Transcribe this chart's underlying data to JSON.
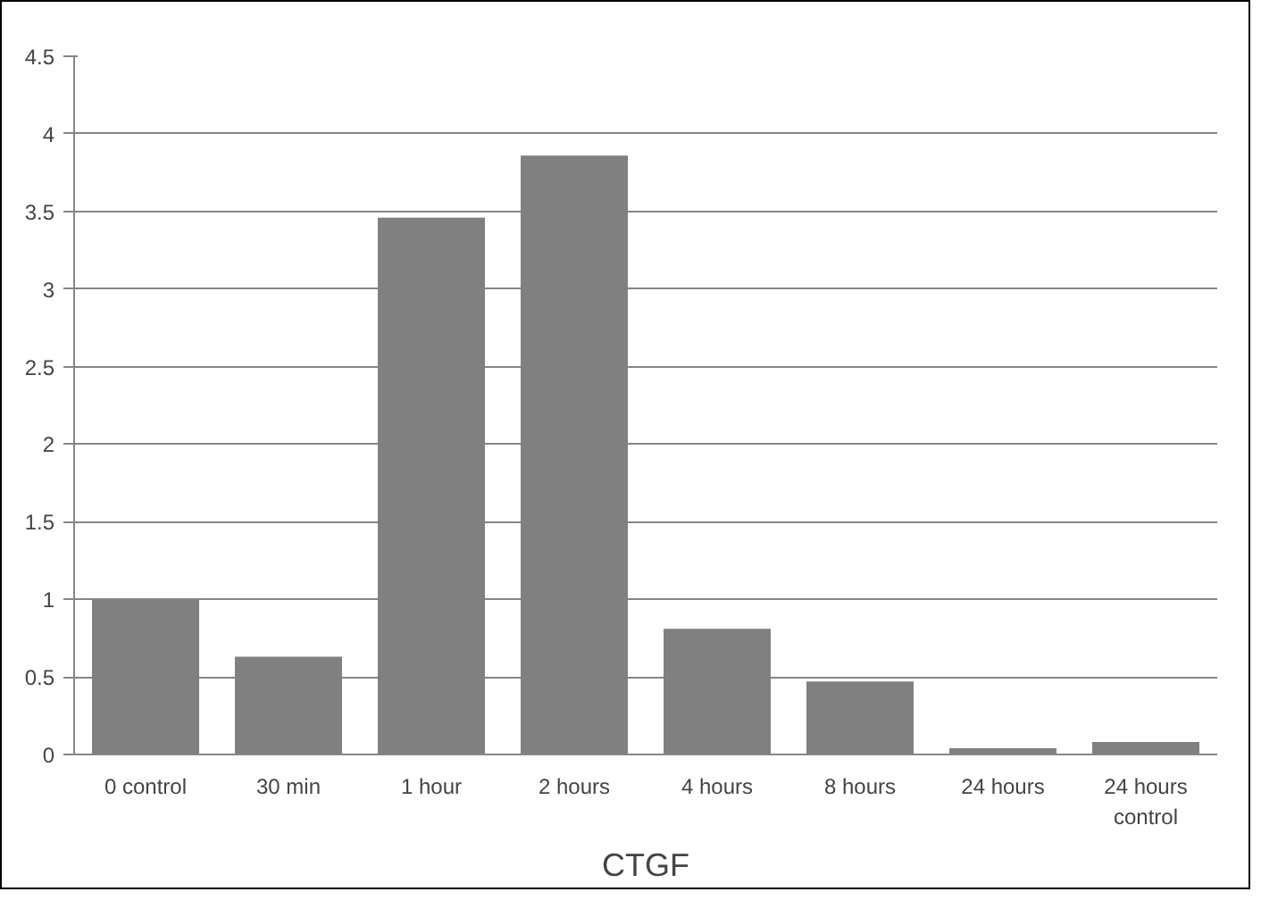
{
  "chart_data": {
    "type": "bar",
    "title": "CTGF",
    "categories": [
      "0 control",
      "30 min",
      "1 hour",
      "2 hours",
      "4 hours",
      "8 hours",
      "24 hours",
      "24 hours control"
    ],
    "values": [
      1.0,
      0.63,
      3.46,
      3.86,
      0.81,
      0.47,
      0.04,
      0.08
    ],
    "color": "#808080",
    "ylim": [
      0,
      4.5
    ],
    "yticks": [
      0,
      0.5,
      1,
      1.5,
      2,
      2.5,
      3,
      3.5,
      4,
      4.5
    ],
    "grid": "y"
  }
}
